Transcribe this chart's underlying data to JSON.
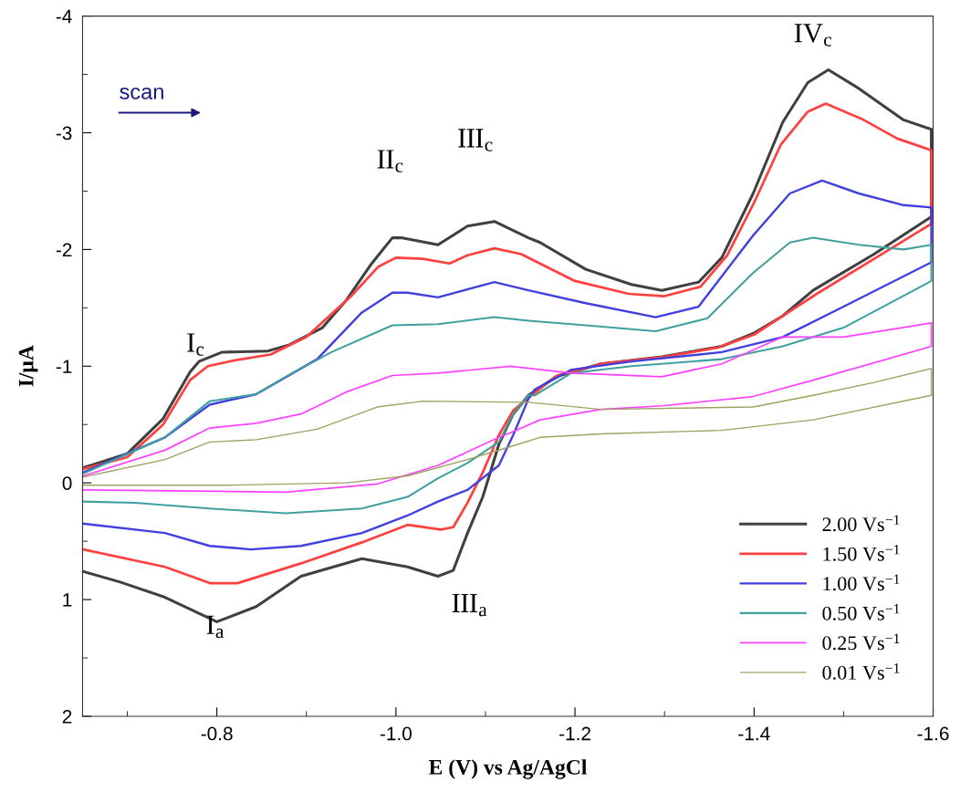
{
  "chart_data": {
    "type": "line",
    "xlabel": "E (V) vs Ag/AgCl",
    "ylabel": "I/μA",
    "xlim": [
      -0.65,
      -1.6
    ],
    "ylim": [
      2,
      -4
    ],
    "xticks": [
      {
        "value": -0.7,
        "label": null
      },
      -0.8,
      {
        "value": -0.9,
        "label": null
      },
      {
        "value": -1.0,
        "label": "-1.0"
      },
      {
        "value": -1.1,
        "label": null
      },
      -1.2,
      {
        "value": -1.3,
        "label": null
      },
      -1.4,
      {
        "value": -1.5,
        "label": null
      },
      -1.6
    ],
    "yticks": [
      -4,
      {
        "value": -3.5,
        "label": null
      },
      -3,
      {
        "value": -2.5,
        "label": null
      },
      -2,
      {
        "value": -1.5,
        "label": null
      },
      -1,
      {
        "value": -0.5,
        "label": null
      },
      0,
      {
        "value": 0.5,
        "label": null
      },
      1,
      {
        "value": 1.5,
        "label": null
      },
      2
    ],
    "grid": false,
    "legend": "bottom right",
    "marker": "none",
    "line_style": "solid",
    "annotations": [
      "I$_{c}$",
      "II$_{c}$",
      "III$_{c}$",
      "IV$_{c}$",
      "I$_{a}$",
      "III$_{a}$",
      "scan"
    ],
    "series": [
      {
        "name": "2.00 Vs$^{−1}$",
        "color": "#404040",
        "x": [
          -0.651,
          -0.7,
          -0.74,
          -0.77,
          -0.78,
          -0.806,
          -0.857,
          -0.88,
          -0.918,
          -0.945,
          -0.973,
          -0.996,
          -1.006,
          -1.047,
          -1.08,
          -1.11,
          -1.148,
          -1.161,
          -1.212,
          -1.263,
          -1.297,
          -1.338,
          -1.364,
          -1.399,
          -1.432,
          -1.46,
          -1.483,
          -1.517,
          -1.567,
          -1.598,
          -1.598,
          -1.534,
          -1.466,
          -1.432,
          -1.399,
          -1.364,
          -1.297,
          -1.229,
          -1.179,
          -1.148,
          -1.131,
          -1.115,
          -1.097,
          -1.08,
          -1.064,
          -1.047,
          -1.013,
          -0.962,
          -0.894,
          -0.844,
          -0.8,
          -0.742,
          -0.692,
          -0.651
        ],
        "values": [
          -0.13,
          -0.25,
          -0.55,
          -0.95,
          -1.04,
          -1.12,
          -1.13,
          -1.18,
          -1.33,
          -1.57,
          -1.88,
          -2.1,
          -2.1,
          -2.04,
          -2.2,
          -2.24,
          -2.1,
          -2.06,
          -1.83,
          -1.7,
          -1.65,
          -1.72,
          -1.93,
          -2.48,
          -3.09,
          -3.43,
          -3.54,
          -3.38,
          -3.11,
          -3.03,
          -2.28,
          -1.96,
          -1.65,
          -1.43,
          -1.28,
          -1.17,
          -1.08,
          -1.02,
          -0.91,
          -0.75,
          -0.59,
          -0.33,
          0.12,
          0.43,
          0.75,
          0.8,
          0.72,
          0.65,
          0.8,
          1.06,
          1.19,
          0.98,
          0.85,
          0.76
        ]
      },
      {
        "name": "1.50 Vs$^{−1}$",
        "color": "#ff4040",
        "x": [
          -0.651,
          -0.7,
          -0.74,
          -0.77,
          -0.79,
          -0.82,
          -0.86,
          -0.9,
          -0.95,
          -0.98,
          -1.0,
          -1.03,
          -1.06,
          -1.08,
          -1.11,
          -1.14,
          -1.2,
          -1.26,
          -1.3,
          -1.34,
          -1.37,
          -1.4,
          -1.43,
          -1.46,
          -1.48,
          -1.52,
          -1.56,
          -1.598,
          -1.598,
          -1.53,
          -1.47,
          -1.43,
          -1.4,
          -1.36,
          -1.3,
          -1.23,
          -1.18,
          -1.15,
          -1.131,
          -1.115,
          -1.097,
          -1.08,
          -1.064,
          -1.05,
          -1.013,
          -0.962,
          -0.894,
          -0.823,
          -0.793,
          -0.742,
          -0.651
        ],
        "values": [
          -0.12,
          -0.22,
          -0.5,
          -0.88,
          -1.0,
          -1.05,
          -1.1,
          -1.25,
          -1.6,
          -1.85,
          -1.93,
          -1.92,
          -1.88,
          -1.95,
          -2.01,
          -1.96,
          -1.73,
          -1.62,
          -1.6,
          -1.68,
          -1.95,
          -2.4,
          -2.9,
          -3.18,
          -3.25,
          -3.12,
          -2.95,
          -2.85,
          -2.22,
          -1.9,
          -1.62,
          -1.42,
          -1.27,
          -1.16,
          -1.08,
          -1.02,
          -0.92,
          -0.74,
          -0.62,
          -0.41,
          -0.09,
          0.17,
          0.38,
          0.4,
          0.36,
          0.51,
          0.69,
          0.86,
          0.86,
          0.72,
          0.57
        ]
      },
      {
        "name": "1.00 Vs$^{−1}$",
        "color": "#4040e0",
        "x": [
          -0.651,
          -0.742,
          -0.792,
          -0.844,
          -0.912,
          -0.962,
          -0.996,
          -1.013,
          -1.047,
          -1.11,
          -1.148,
          -1.212,
          -1.29,
          -1.338,
          -1.399,
          -1.44,
          -1.476,
          -1.517,
          -1.567,
          -1.598,
          -1.598,
          -1.5,
          -1.432,
          -1.364,
          -1.263,
          -1.196,
          -1.155,
          -1.148,
          -1.131,
          -1.115,
          -1.08,
          -1.047,
          -1.013,
          -0.962,
          -0.894,
          -0.838,
          -0.792,
          -0.742,
          -0.651
        ],
        "values": [
          -0.09,
          -0.39,
          -0.67,
          -0.76,
          -1.06,
          -1.46,
          -1.63,
          -1.63,
          -1.59,
          -1.72,
          -1.65,
          -1.54,
          -1.42,
          -1.51,
          -2.12,
          -2.48,
          -2.59,
          -2.48,
          -2.38,
          -2.36,
          -1.89,
          -1.51,
          -1.25,
          -1.12,
          -1.04,
          -0.97,
          -0.8,
          -0.72,
          -0.41,
          -0.15,
          0.06,
          0.16,
          0.28,
          0.43,
          0.54,
          0.57,
          0.54,
          0.43,
          0.35
        ]
      },
      {
        "name": "0.50 Vs$^{−1}$",
        "color": "#40a0a0",
        "x": [
          -0.651,
          -0.742,
          -0.792,
          -0.844,
          -0.877,
          -0.928,
          -0.996,
          -1.047,
          -1.11,
          -1.148,
          -1.212,
          -1.29,
          -1.348,
          -1.399,
          -1.44,
          -1.466,
          -1.517,
          -1.567,
          -1.598,
          -1.598,
          -1.5,
          -1.432,
          -1.364,
          -1.263,
          -1.196,
          -1.155,
          -1.148,
          -1.131,
          -1.115,
          -1.08,
          -1.047,
          -1.013,
          -0.962,
          -0.877,
          -0.792,
          -0.708,
          -0.651
        ],
        "values": [
          -0.08,
          -0.39,
          -0.7,
          -0.76,
          -0.91,
          -1.12,
          -1.35,
          -1.36,
          -1.42,
          -1.39,
          -1.35,
          -1.3,
          -1.41,
          -1.8,
          -2.06,
          -2.1,
          -2.04,
          -2.0,
          -2.04,
          -1.73,
          -1.33,
          -1.17,
          -1.06,
          -1.0,
          -0.94,
          -0.75,
          -0.75,
          -0.59,
          -0.35,
          -0.17,
          -0.04,
          0.12,
          0.22,
          0.26,
          0.22,
          0.17,
          0.16
        ]
      },
      {
        "name": "0.25 Vs$^{−1}$",
        "color": "#ff40ff",
        "x": [
          -0.651,
          -0.742,
          -0.792,
          -0.844,
          -0.894,
          -0.945,
          -0.996,
          -1.047,
          -1.128,
          -1.196,
          -1.297,
          -1.364,
          -1.432,
          -1.5,
          -1.598,
          -1.598,
          -1.466,
          -1.399,
          -1.297,
          -1.229,
          -1.161,
          -1.128,
          -1.115,
          -1.047,
          -0.979,
          -0.877,
          -0.775,
          -0.651
        ],
        "values": [
          -0.06,
          -0.28,
          -0.47,
          -0.51,
          -0.59,
          -0.78,
          -0.92,
          -0.94,
          -1.0,
          -0.94,
          -0.91,
          -1.02,
          -1.25,
          -1.25,
          -1.37,
          -1.17,
          -0.88,
          -0.74,
          -0.66,
          -0.63,
          -0.54,
          -0.43,
          -0.39,
          -0.15,
          0.01,
          0.08,
          0.07,
          0.06
        ]
      },
      {
        "name": "0.01 Vs$^{−1}$",
        "color": "#a0a060",
        "x": [
          -0.651,
          -0.742,
          -0.792,
          -0.844,
          -0.912,
          -0.979,
          -1.03,
          -1.148,
          -1.229,
          -1.399,
          -1.466,
          -1.534,
          -1.598,
          -1.598,
          -1.466,
          -1.364,
          -1.229,
          -1.161,
          -1.128,
          -1.08,
          -1.013,
          -0.945,
          -0.81,
          -0.651
        ],
        "values": [
          -0.05,
          -0.2,
          -0.35,
          -0.37,
          -0.46,
          -0.65,
          -0.7,
          -0.69,
          -0.63,
          -0.65,
          -0.75,
          -0.86,
          -0.98,
          -0.75,
          -0.54,
          -0.45,
          -0.42,
          -0.39,
          -0.31,
          -0.2,
          -0.06,
          0.0,
          0.02,
          0.02
        ]
      }
    ]
  }
}
